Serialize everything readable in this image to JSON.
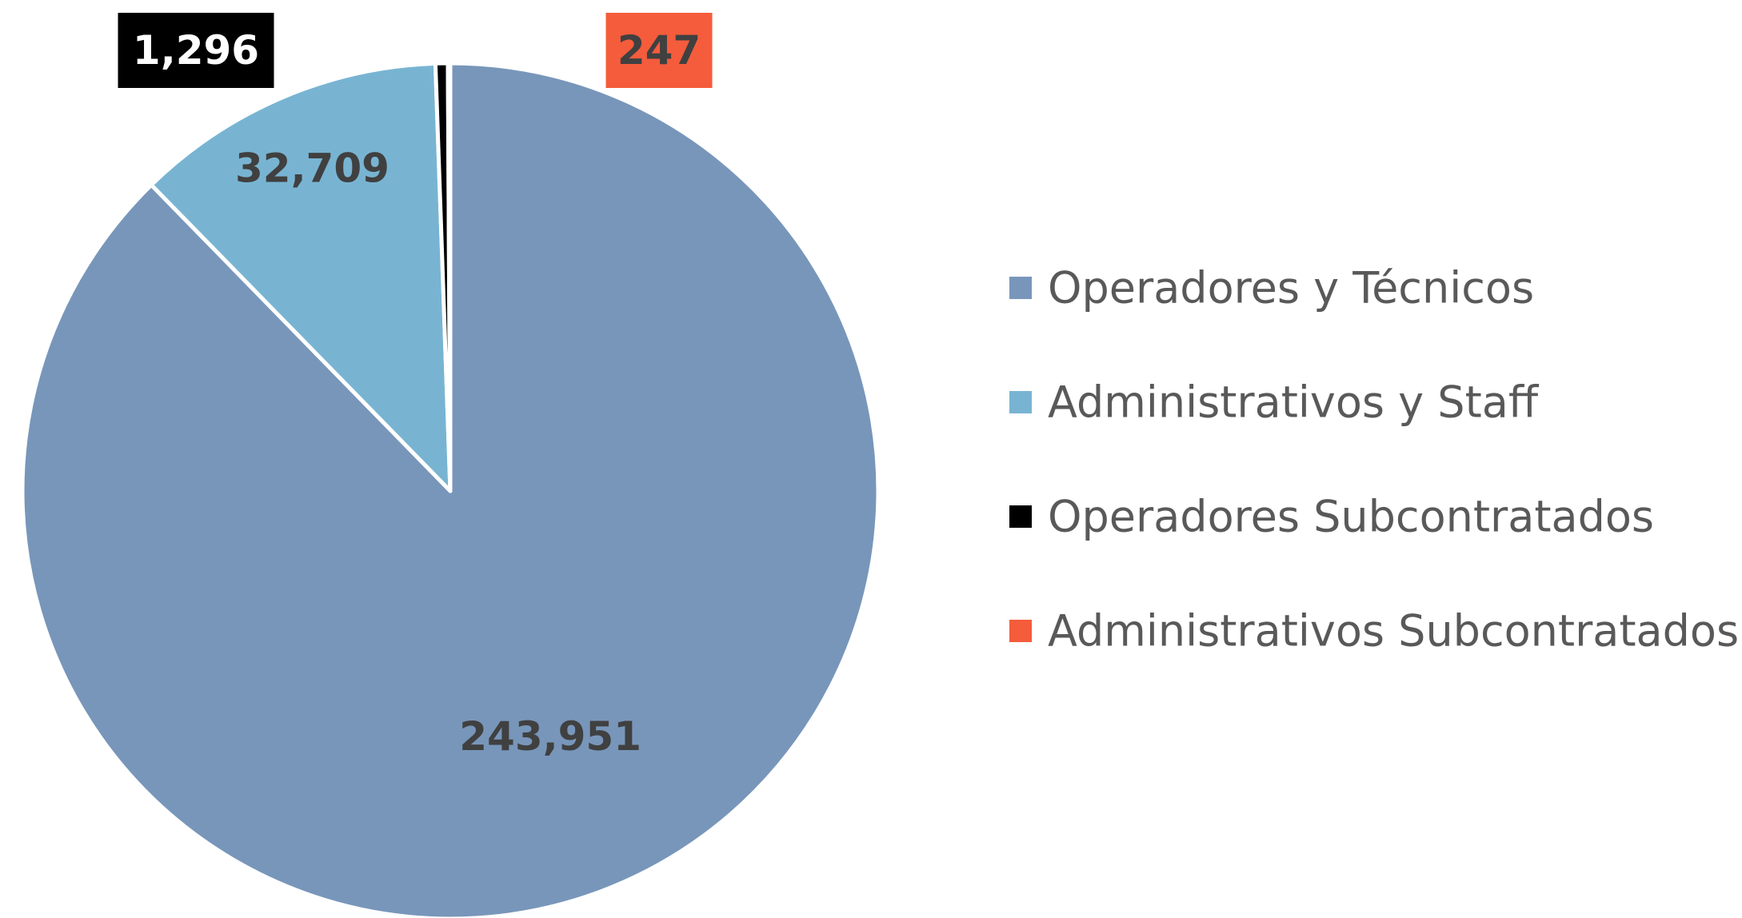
{
  "chart_data": {
    "type": "pie",
    "categories": [
      "Operadores y Técnicos",
      "Administrativos y Staff",
      "Operadores Subcontratados",
      "Administrativos Subcontratados"
    ],
    "values": [
      243951,
      32709,
      1296,
      247
    ],
    "value_labels": [
      "243,951",
      "32,709",
      "1,296",
      "247"
    ],
    "colors": [
      "#7896ba",
      "#78b4d2",
      "#000000",
      "#f45c3c"
    ],
    "legend": "right"
  }
}
